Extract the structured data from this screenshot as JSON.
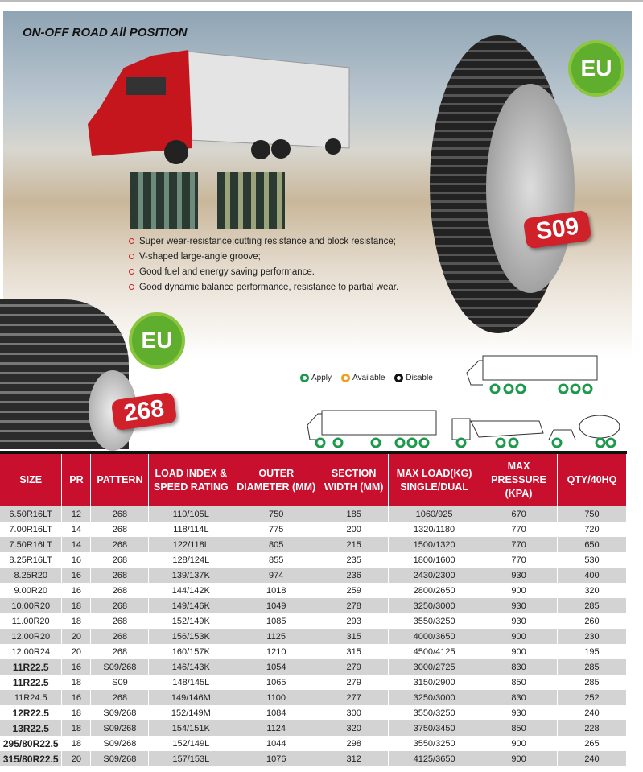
{
  "hero": {
    "title": "ON-OFF ROAD All POSITION",
    "features": [
      "Super wear-resistance;cutting resistance and block resistance;",
      "V-shaped large-angle groove;",
      "Good fuel and energy saving performance.",
      "Good dynamic balance performance, resistance to partial wear."
    ],
    "eu_badge": "EU",
    "model_main": "S09",
    "model_second": "268"
  },
  "legend": [
    {
      "label": "Apply",
      "color": "#1a9a4a"
    },
    {
      "label": "Available",
      "color": "#f0a020"
    },
    {
      "label": "Disable",
      "color": "#111111"
    }
  ],
  "table": {
    "headers": [
      "SIZE",
      "PR",
      "PATTERN",
      "LOAD INDEX & SPEED RATING",
      "OUTER DIAMETER (MM)",
      "SECTION WIDTH (MM)",
      "MAX LOAD(KG) SINGLE/DUAL",
      "MAX PRESSURE (KPA)",
      "QTY/40HQ"
    ],
    "rows": [
      [
        "6.50R16LT",
        "12",
        "268",
        "110/105L",
        "750",
        "185",
        "1060/925",
        "670",
        "750"
      ],
      [
        "7.00R16LT",
        "14",
        "268",
        "118/114L",
        "775",
        "200",
        "1320/1180",
        "770",
        "720"
      ],
      [
        "7.50R16LT",
        "14",
        "268",
        "122/118L",
        "805",
        "215",
        "1500/1320",
        "770",
        "650"
      ],
      [
        "8.25R16LT",
        "16",
        "268",
        "128/124L",
        "855",
        "235",
        "1800/1600",
        "770",
        "530"
      ],
      [
        "8.25R20",
        "16",
        "268",
        "139/137K",
        "974",
        "236",
        "2430/2300",
        "930",
        "400"
      ],
      [
        "9.00R20",
        "16",
        "268",
        "144/142K",
        "1018",
        "259",
        "2800/2650",
        "900",
        "320"
      ],
      [
        "10.00R20",
        "18",
        "268",
        "149/146K",
        "1049",
        "278",
        "3250/3000",
        "930",
        "285"
      ],
      [
        "11.00R20",
        "18",
        "268",
        "152/149K",
        "1085",
        "293",
        "3550/3250",
        "930",
        "260"
      ],
      [
        "12.00R20",
        "20",
        "268",
        "156/153K",
        "1125",
        "315",
        "4000/3650",
        "900",
        "230"
      ],
      [
        "12.00R24",
        "20",
        "268",
        "160/157K",
        "1210",
        "315",
        "4500/4125",
        "900",
        "195"
      ],
      [
        "11R22.5",
        "16",
        "S09/268",
        "146/143K",
        "1054",
        "279",
        "3000/2725",
        "830",
        "285"
      ],
      [
        "11R22.5",
        "18",
        "S09",
        "148/145L",
        "1065",
        "279",
        "3150/2900",
        "850",
        "285"
      ],
      [
        "11R24.5",
        "16",
        "268",
        "149/146M",
        "1100",
        "277",
        "3250/3000",
        "830",
        "252"
      ],
      [
        "12R22.5",
        "18",
        "S09/268",
        "152/149M",
        "1084",
        "300",
        "3550/3250",
        "930",
        "240"
      ],
      [
        "13R22.5",
        "18",
        "S09/268",
        "154/151K",
        "1124",
        "320",
        "3750/3450",
        "850",
        "228"
      ],
      [
        "295/80R22.5",
        "18",
        "S09/268",
        "152/149L",
        "1044",
        "298",
        "3550/3250",
        "900",
        "265"
      ],
      [
        "315/80R22.5",
        "20",
        "S09/268",
        "157/153L",
        "1076",
        "312",
        "4125/3650",
        "900",
        "240"
      ]
    ],
    "bold_size_rows": [
      10,
      11,
      13,
      14,
      15,
      16
    ]
  }
}
